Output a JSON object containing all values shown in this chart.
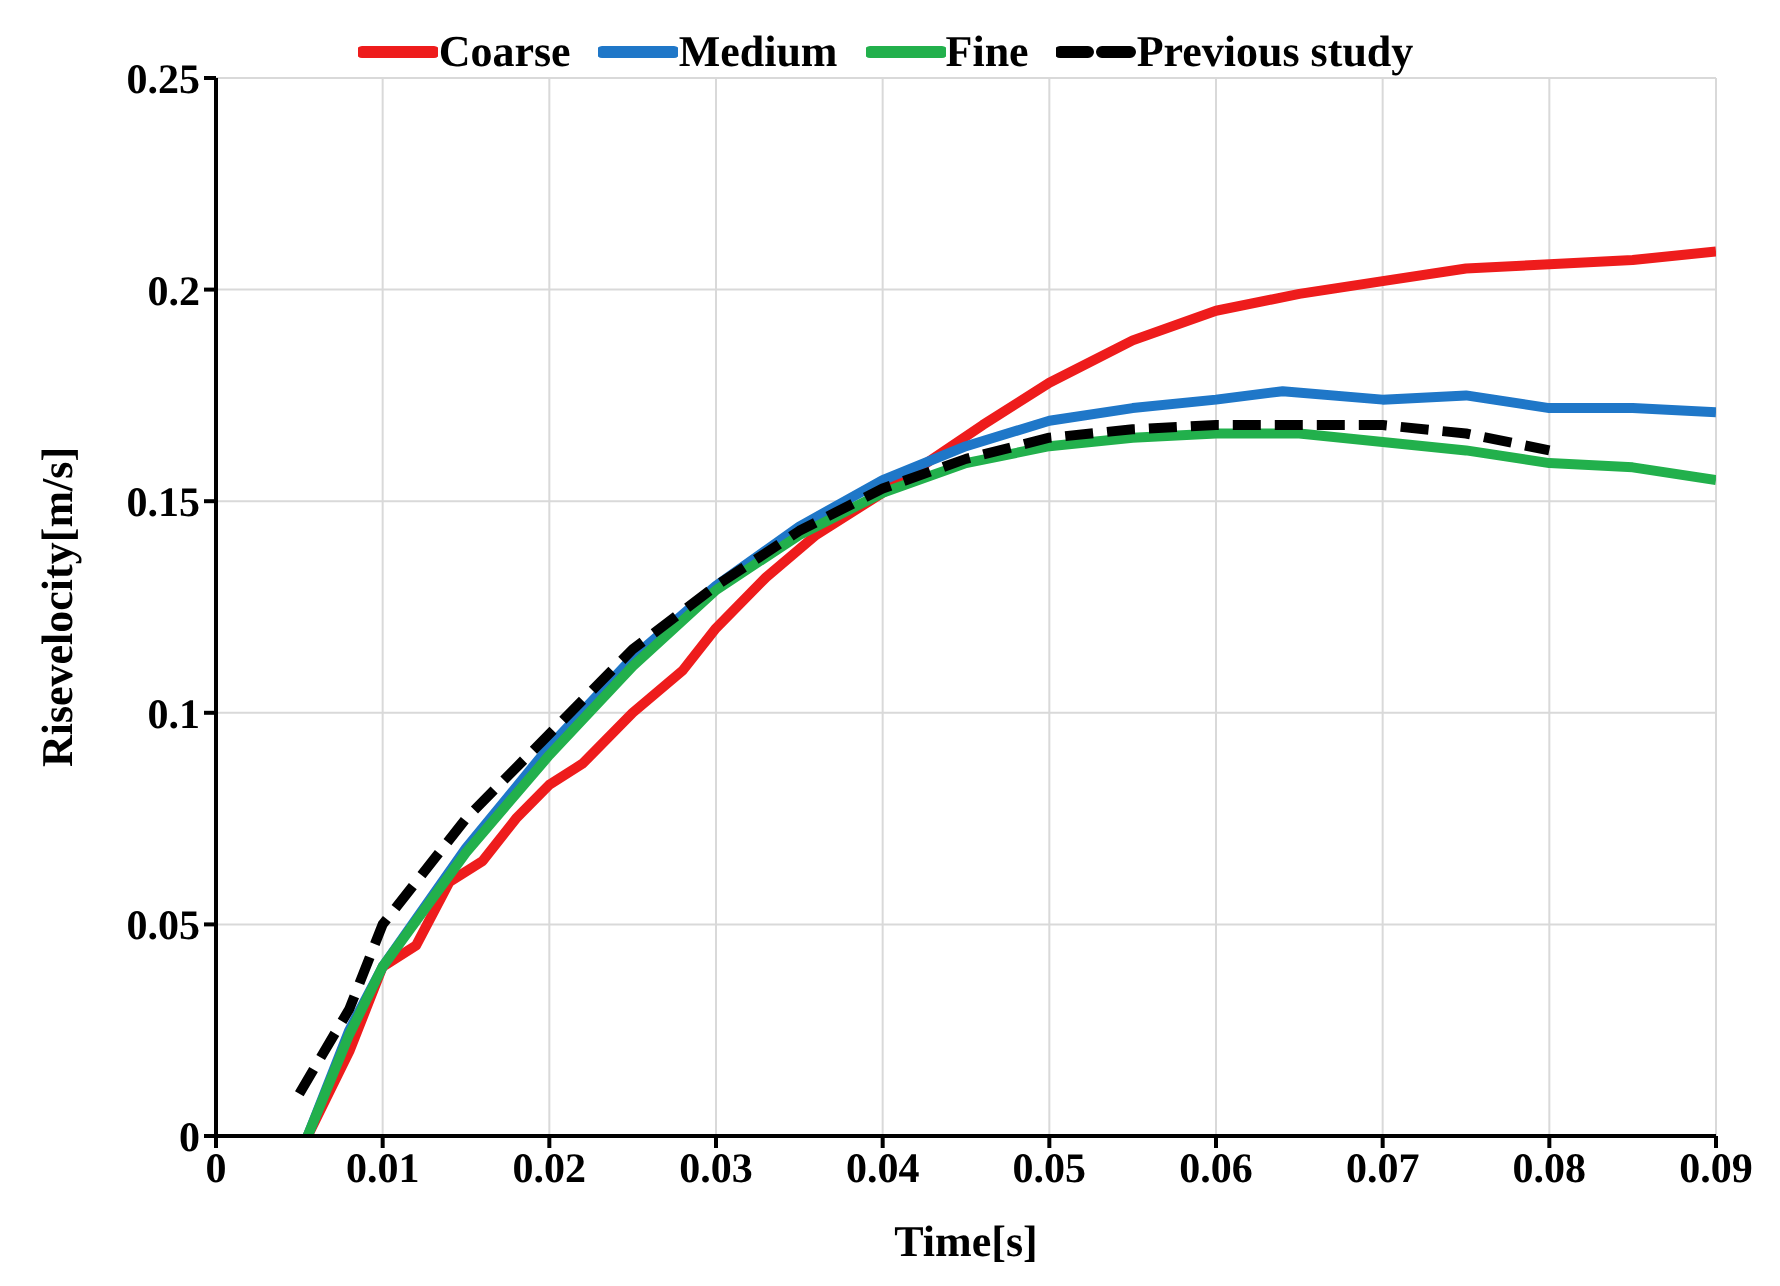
{
  "chart_data": {
    "type": "line",
    "xlabel": "Time[s]",
    "ylabel": "Risevelocity[m/s]",
    "xlim": [
      0,
      0.09
    ],
    "ylim": [
      0,
      0.25
    ],
    "xticks": [
      0,
      0.01,
      0.02,
      0.03,
      0.04,
      0.05,
      0.06,
      0.07,
      0.08,
      0.09
    ],
    "yticks": [
      0,
      0.05,
      0.1,
      0.15,
      0.2,
      0.25
    ],
    "grid": true,
    "legend": "top",
    "marker": "none",
    "series": [
      {
        "name": "Coarse",
        "color": "#ee1c1c",
        "line_style": "solid",
        "x": [
          0.0055,
          0.008,
          0.01,
          0.012,
          0.014,
          0.016,
          0.018,
          0.02,
          0.022,
          0.025,
          0.028,
          0.03,
          0.033,
          0.036,
          0.04,
          0.043,
          0.046,
          0.05,
          0.055,
          0.06,
          0.065,
          0.07,
          0.075,
          0.08,
          0.085,
          0.09
        ],
        "values": [
          0,
          0.02,
          0.04,
          0.045,
          0.06,
          0.065,
          0.075,
          0.083,
          0.088,
          0.1,
          0.11,
          0.12,
          0.132,
          0.142,
          0.152,
          0.16,
          0.168,
          0.178,
          0.188,
          0.195,
          0.199,
          0.202,
          0.205,
          0.206,
          0.207,
          0.209
        ]
      },
      {
        "name": "Medium",
        "color": "#1f77c8",
        "line_style": "solid",
        "x": [
          0.0055,
          0.008,
          0.01,
          0.015,
          0.02,
          0.025,
          0.03,
          0.035,
          0.04,
          0.045,
          0.05,
          0.055,
          0.06,
          0.064,
          0.07,
          0.075,
          0.08,
          0.085,
          0.09
        ],
        "values": [
          0,
          0.025,
          0.04,
          0.068,
          0.092,
          0.113,
          0.13,
          0.144,
          0.155,
          0.163,
          0.169,
          0.172,
          0.174,
          0.176,
          0.174,
          0.175,
          0.172,
          0.172,
          0.171
        ]
      },
      {
        "name": "Fine",
        "color": "#22b04c",
        "line_style": "solid",
        "x": [
          0.0055,
          0.008,
          0.01,
          0.015,
          0.02,
          0.025,
          0.03,
          0.035,
          0.04,
          0.045,
          0.05,
          0.055,
          0.06,
          0.065,
          0.07,
          0.075,
          0.08,
          0.085,
          0.09
        ],
        "values": [
          0,
          0.024,
          0.04,
          0.067,
          0.09,
          0.111,
          0.129,
          0.142,
          0.152,
          0.159,
          0.163,
          0.165,
          0.166,
          0.166,
          0.164,
          0.162,
          0.159,
          0.158,
          0.155
        ]
      },
      {
        "name": "Previous study",
        "color": "#000000",
        "line_style": "dashed",
        "x": [
          0.005,
          0.008,
          0.01,
          0.013,
          0.015,
          0.02,
          0.025,
          0.03,
          0.035,
          0.04,
          0.045,
          0.05,
          0.055,
          0.06,
          0.065,
          0.07,
          0.075,
          0.08
        ],
        "values": [
          0.01,
          0.03,
          0.05,
          0.065,
          0.075,
          0.095,
          0.115,
          0.13,
          0.143,
          0.153,
          0.16,
          0.165,
          0.167,
          0.168,
          0.168,
          0.168,
          0.166,
          0.162
        ]
      }
    ]
  }
}
